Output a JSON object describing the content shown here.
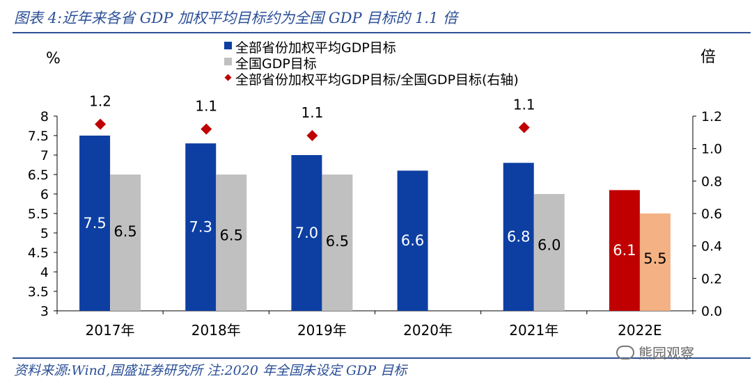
{
  "title": "图表 4:近年来各省 GDP 加权平均目标约为全国 GDP 目标的 1.1 倍",
  "source": "资料来源:Wind,国盛证券研究所 注:2020 年全国未设定 GDP 目标",
  "watermark": "熊园观察",
  "colors": {
    "blue": "#0d3fa3",
    "gray": "#c0c0c0",
    "red": "#c00000",
    "salmon": "#f4b183",
    "diamond": "#c00000",
    "frame": "#2b4f97"
  },
  "chart_data": {
    "type": "bar",
    "categories": [
      "2017年",
      "2018年",
      "2019年",
      "2020年",
      "2021年",
      "2022E"
    ],
    "series": [
      {
        "name": "全部省份加权平均GDP目标",
        "values": [
          7.5,
          7.3,
          7.0,
          6.6,
          6.8,
          6.1
        ],
        "labels": [
          "7.5",
          "7.3",
          "7.0",
          "6.6",
          "6.8",
          "6.1"
        ],
        "axis": "left"
      },
      {
        "name": "全国GDP目标",
        "values": [
          6.5,
          6.5,
          6.5,
          null,
          6.0,
          5.5
        ],
        "labels": [
          "6.5",
          "6.5",
          "6.5",
          "",
          "6.0",
          "5.5"
        ],
        "axis": "left"
      },
      {
        "name": "全部省份加权平均GDP目标/全国GDP目标(右轴)",
        "type": "scatter",
        "values": [
          1.15,
          1.12,
          1.08,
          null,
          1.13,
          null
        ],
        "labels": [
          "1.2",
          "1.1",
          "1.1",
          "",
          "1.1",
          ""
        ],
        "axis": "right"
      }
    ],
    "highlight_category": "2022E",
    "left_unit": "%",
    "right_unit": "倍",
    "ylim": [
      3,
      8
    ],
    "yticks": [
      "3",
      "3.5",
      "4",
      "4.5",
      "5",
      "5.5",
      "6",
      "6.5",
      "7",
      "7.5",
      "8"
    ],
    "y2lim": [
      0,
      1.2
    ],
    "y2ticks": [
      "0.0",
      "0.2",
      "0.4",
      "0.6",
      "0.8",
      "1.0",
      "1.2"
    ],
    "legend_position": "top-center",
    "grid": false
  }
}
